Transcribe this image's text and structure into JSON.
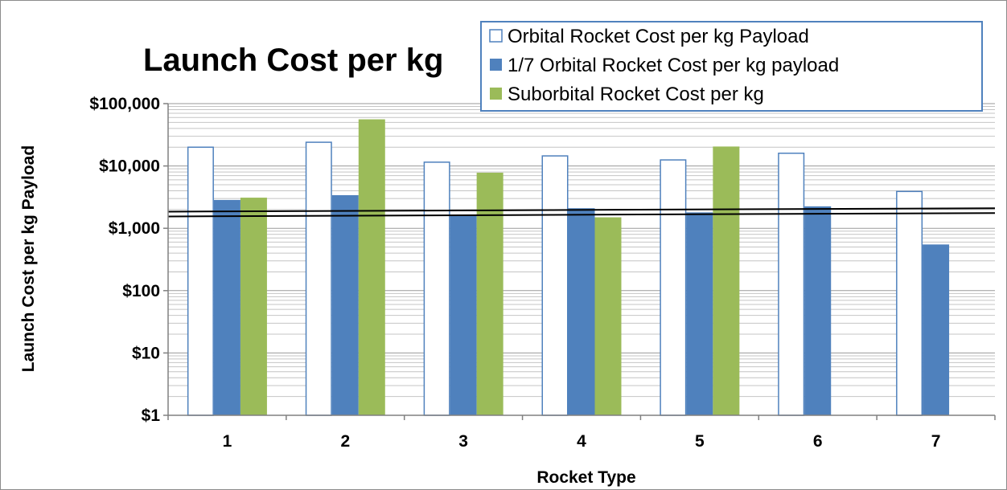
{
  "chart_data": {
    "type": "bar",
    "title": "Launch Cost per kg",
    "xlabel": "Rocket Type",
    "ylabel": "Launch Cost per kg Payload",
    "y_scale": "log",
    "ylim": [
      1,
      100000
    ],
    "y_ticks": [
      1,
      10,
      100,
      1000,
      10000,
      100000
    ],
    "y_tick_labels": [
      "$1",
      "$10",
      "$100",
      "$1,000",
      "$10,000",
      "$100,000"
    ],
    "categories": [
      "1",
      "2",
      "3",
      "4",
      "5",
      "6",
      "7"
    ],
    "series": [
      {
        "name": "Orbital Rocket Cost per kg Payload",
        "style": "outline",
        "color": "#4f81bd",
        "values": [
          20000,
          24000,
          11500,
          14500,
          12500,
          16000,
          3900
        ]
      },
      {
        "name": "1/7 Orbital Rocket Cost per kg payload",
        "style": "filled",
        "color": "#4f81bd",
        "values": [
          2850,
          3400,
          1650,
          2100,
          1800,
          2250,
          550
        ]
      },
      {
        "name": "Suborbital Rocket Cost per kg",
        "style": "filled",
        "color": "#9bbb59",
        "values": [
          3100,
          56000,
          7800,
          1500,
          20500,
          null,
          null
        ]
      }
    ],
    "grid": true,
    "grid_minor": true,
    "legend_position": "top-right",
    "reference_line": {
      "from_value": 1850,
      "to_value": 2100,
      "style": "double black line"
    }
  }
}
